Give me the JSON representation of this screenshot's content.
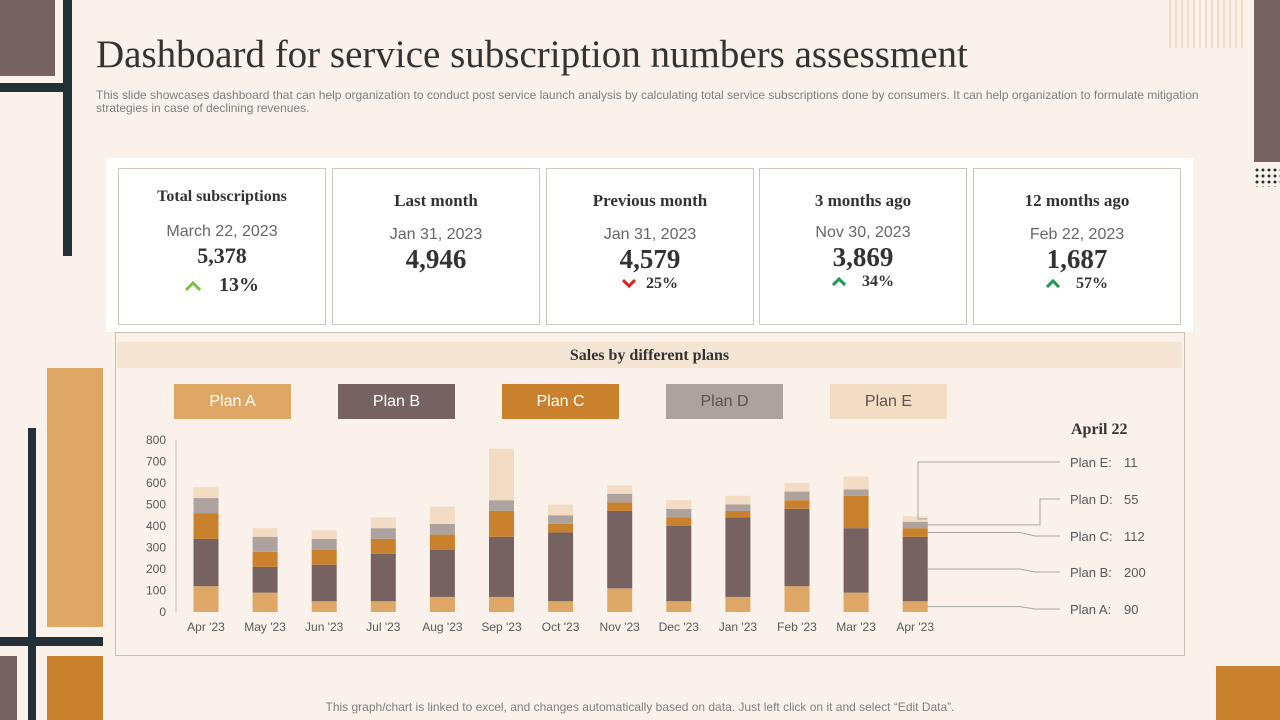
{
  "title": "Dashboard for service subscription numbers assessment",
  "subtitle": "This slide showcases dashboard that can help organization to conduct post service launch analysis by calculating total service subscriptions done by consumers. It can help organization to formulate mitigation strategies in case of declining revenues.",
  "kpis": [
    {
      "title": "Total subscriptions",
      "date": "March 22, 2023",
      "value": "5,378",
      "change": "13%",
      "trend": "up",
      "arrow_color": "#7bc143"
    },
    {
      "title": "Last month",
      "date": "Jan 31, 2023",
      "value": "4,946"
    },
    {
      "title": "Previous month",
      "date": "Jan 31, 2023",
      "value": "4,579",
      "change": "25%",
      "trend": "down",
      "arrow_color": "#e02020"
    },
    {
      "title": "3 months ago",
      "date": "Nov 30, 2023",
      "value": "3,869",
      "change": "34%",
      "trend": "up",
      "arrow_color": "#1a9a54"
    },
    {
      "title": "12 months ago",
      "date": "Feb 22, 2023",
      "value": "1,687",
      "change": "57%",
      "trend": "up",
      "arrow_color": "#1a9a54"
    }
  ],
  "chart_header": "Sales by different plans",
  "legend": [
    {
      "label": "Plan A",
      "color": "#dfa766",
      "text_color": "#ffffff"
    },
    {
      "label": "Plan B",
      "color": "#766361",
      "text_color": "#ffffff"
    },
    {
      "label": "Plan C",
      "color": "#c9812d",
      "text_color": "#ffffff"
    },
    {
      "label": "Plan D",
      "color": "#aea29e",
      "text_color": "#5e524e"
    },
    {
      "label": "Plan E",
      "color": "#f2dcc4",
      "text_color": "#5e524e"
    }
  ],
  "chart_data": {
    "type": "bar",
    "stacked": true,
    "categories": [
      "Apr '23",
      "May '23",
      "Jun '23",
      "Jul '23",
      "Aug '23",
      "Sep '23",
      "Oct '23",
      "Nov '23",
      "Dec '23",
      "Jan '23",
      "Feb '23",
      "Mar '23",
      "Apr '23"
    ],
    "series": [
      {
        "name": "Plan A",
        "color": "#dfa766",
        "values": [
          120,
          90,
          50,
          50,
          70,
          70,
          50,
          110,
          50,
          70,
          120,
          90,
          50
        ]
      },
      {
        "name": "Plan B",
        "color": "#766361",
        "values": [
          220,
          120,
          170,
          220,
          220,
          280,
          320,
          360,
          350,
          370,
          360,
          300,
          300
        ]
      },
      {
        "name": "Plan C",
        "color": "#c9812d",
        "values": [
          120,
          70,
          70,
          70,
          70,
          120,
          40,
          40,
          40,
          30,
          40,
          150,
          40
        ]
      },
      {
        "name": "Plan D",
        "color": "#aea29e",
        "values": [
          70,
          70,
          50,
          50,
          50,
          50,
          40,
          40,
          40,
          30,
          40,
          30,
          30
        ]
      },
      {
        "name": "Plan E",
        "color": "#f2dcc4",
        "values": [
          50,
          40,
          40,
          50,
          80,
          240,
          50,
          40,
          40,
          40,
          40,
          60,
          25
        ]
      }
    ],
    "yticks": [
      0,
      100,
      200,
      300,
      400,
      500,
      600,
      700,
      800
    ],
    "ylim": [
      0,
      800
    ],
    "annotation": {
      "title": "April 22",
      "items": [
        {
          "label": "Plan E:",
          "value": "11"
        },
        {
          "label": "Plan D:",
          "value": "55"
        },
        {
          "label": "Plan C:",
          "value": "112"
        },
        {
          "label": "Plan B:",
          "value": "200"
        },
        {
          "label": "Plan A:",
          "value": "90"
        }
      ]
    }
  },
  "footnote": "This graph/chart is linked to excel, and changes automatically based on data. Just left click on it and select “Edit Data”."
}
